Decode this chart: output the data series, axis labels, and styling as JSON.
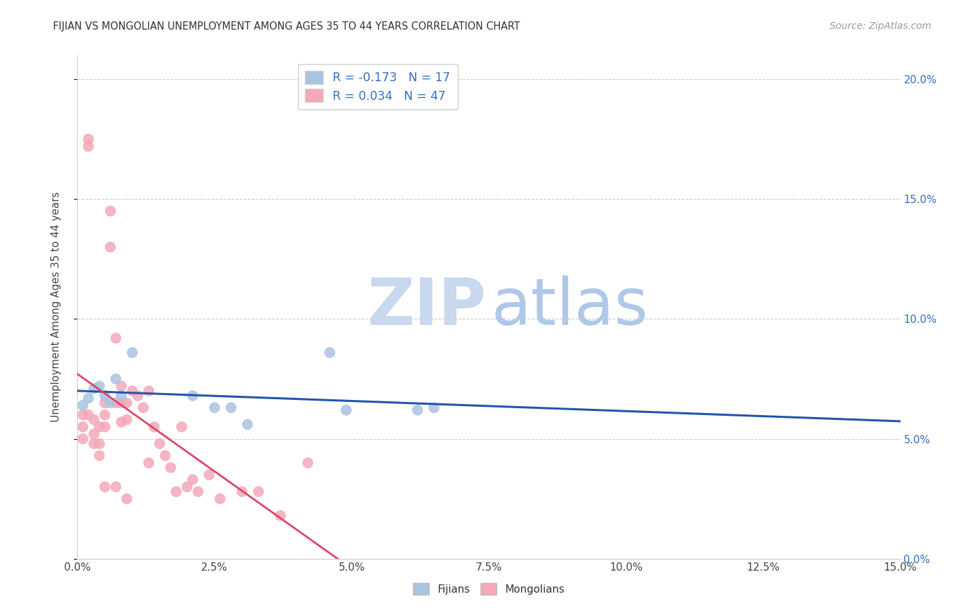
{
  "title": "FIJIAN VS MONGOLIAN UNEMPLOYMENT AMONG AGES 35 TO 44 YEARS CORRELATION CHART",
  "source": "Source: ZipAtlas.com",
  "ylabel": "Unemployment Among Ages 35 to 44 years",
  "xlim": [
    0.0,
    0.15
  ],
  "ylim": [
    0.0,
    0.21
  ],
  "fijian_R": -0.173,
  "fijian_N": 17,
  "mongolian_R": 0.034,
  "mongolian_N": 47,
  "fijian_color": "#a8c4e0",
  "mongolian_color": "#f4a8b8",
  "fijian_line_color": "#2255aa",
  "mongolian_line_color": "#dd4466",
  "watermark_zip_color": "#c8d8ee",
  "watermark_atlas_color": "#b0c8e8",
  "background_color": "#ffffff",
  "grid_color": "#cccccc",
  "fijians_x": [
    0.001,
    0.002,
    0.003,
    0.004,
    0.005,
    0.006,
    0.007,
    0.008,
    0.01,
    0.021,
    0.025,
    0.028,
    0.031,
    0.046,
    0.049,
    0.062,
    0.065
  ],
  "fijians_y": [
    0.064,
    0.067,
    0.071,
    0.072,
    0.068,
    0.065,
    0.075,
    0.068,
    0.086,
    0.068,
    0.063,
    0.063,
    0.056,
    0.086,
    0.062,
    0.062,
    0.063
  ],
  "mongolians_x": [
    0.001,
    0.001,
    0.001,
    0.002,
    0.002,
    0.002,
    0.003,
    0.003,
    0.003,
    0.004,
    0.004,
    0.004,
    0.005,
    0.005,
    0.005,
    0.005,
    0.006,
    0.006,
    0.007,
    0.007,
    0.007,
    0.008,
    0.008,
    0.008,
    0.009,
    0.009,
    0.009,
    0.01,
    0.011,
    0.012,
    0.013,
    0.013,
    0.014,
    0.015,
    0.016,
    0.017,
    0.018,
    0.019,
    0.02,
    0.021,
    0.022,
    0.024,
    0.026,
    0.03,
    0.033,
    0.037,
    0.042
  ],
  "mongolians_y": [
    0.06,
    0.055,
    0.05,
    0.175,
    0.172,
    0.06,
    0.058,
    0.052,
    0.048,
    0.055,
    0.048,
    0.043,
    0.065,
    0.06,
    0.055,
    0.03,
    0.145,
    0.13,
    0.092,
    0.065,
    0.03,
    0.072,
    0.065,
    0.057,
    0.065,
    0.058,
    0.025,
    0.07,
    0.068,
    0.063,
    0.07,
    0.04,
    0.055,
    0.048,
    0.043,
    0.038,
    0.028,
    0.055,
    0.03,
    0.033,
    0.028,
    0.035,
    0.025,
    0.028,
    0.028,
    0.018,
    0.04
  ]
}
